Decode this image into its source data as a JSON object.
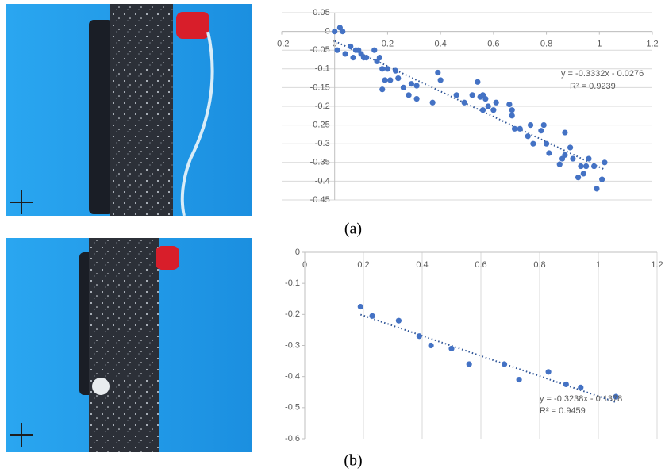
{
  "chart_data": [
    {
      "type": "scatter",
      "caption": "(a)",
      "x": [
        0.0,
        0.01,
        0.02,
        0.03,
        0.04,
        0.06,
        0.07,
        0.08,
        0.09,
        0.1,
        0.11,
        0.12,
        0.15,
        0.16,
        0.17,
        0.18,
        0.18,
        0.19,
        0.2,
        0.21,
        0.23,
        0.24,
        0.26,
        0.28,
        0.29,
        0.31,
        0.31,
        0.37,
        0.39,
        0.4,
        0.46,
        0.49,
        0.52,
        0.54,
        0.55,
        0.56,
        0.56,
        0.57,
        0.58,
        0.6,
        0.61,
        0.66,
        0.67,
        0.67,
        0.68,
        0.7,
        0.73,
        0.74,
        0.75,
        0.78,
        0.79,
        0.8,
        0.81,
        0.85,
        0.86,
        0.87,
        0.87,
        0.89,
        0.9,
        0.92,
        0.93,
        0.94,
        0.95,
        0.96,
        0.98,
        0.99,
        1.01,
        1.02
      ],
      "values": [
        0.0,
        -0.05,
        0.01,
        0.0,
        -0.06,
        -0.04,
        -0.07,
        -0.05,
        -0.05,
        -0.06,
        -0.07,
        -0.07,
        -0.05,
        -0.08,
        -0.07,
        -0.1,
        -0.155,
        -0.13,
        -0.1,
        -0.13,
        -0.105,
        -0.125,
        -0.15,
        -0.17,
        -0.14,
        -0.18,
        -0.145,
        -0.19,
        -0.11,
        -0.13,
        -0.17,
        -0.19,
        -0.17,
        -0.135,
        -0.175,
        -0.17,
        -0.21,
        -0.18,
        -0.2,
        -0.21,
        -0.19,
        -0.195,
        -0.21,
        -0.225,
        -0.26,
        -0.26,
        -0.28,
        -0.25,
        -0.3,
        -0.265,
        -0.25,
        -0.3,
        -0.325,
        -0.355,
        -0.34,
        -0.33,
        -0.27,
        -0.31,
        -0.34,
        -0.39,
        -0.36,
        -0.38,
        -0.36,
        -0.34,
        -0.36,
        -0.42,
        -0.395,
        -0.35
      ],
      "color": "#4472c4",
      "trendline": true,
      "grid": "y",
      "xlim": [
        -0.2,
        1.2
      ],
      "xticks": [
        -0.2,
        0,
        0.2,
        0.4,
        0.6,
        0.8,
        1,
        1.2
      ],
      "ylim": [
        -0.45,
        0.05
      ],
      "yticks": [
        0.05,
        0,
        -0.05,
        -0.1,
        -0.15,
        -0.2,
        -0.25,
        -0.3,
        -0.35,
        -0.4,
        -0.45
      ],
      "annotations": [
        "y = -0.3332x - 0.0276",
        "R² = 0.9239"
      ]
    },
    {
      "type": "scatter",
      "caption": "(b)",
      "x": [
        0.19,
        0.23,
        0.32,
        0.39,
        0.43,
        0.5,
        0.56,
        0.68,
        0.73,
        0.83,
        0.89,
        0.94,
        1.06
      ],
      "values": [
        -0.175,
        -0.205,
        -0.22,
        -0.27,
        -0.3,
        -0.31,
        -0.36,
        -0.36,
        -0.41,
        -0.385,
        -0.425,
        -0.435,
        -0.465
      ],
      "color": "#4472c4",
      "trendline": true,
      "grid": "x",
      "xlim": [
        0,
        1.2
      ],
      "xticks": [
        0,
        0.2,
        0.4,
        0.6,
        0.8,
        1,
        1.2
      ],
      "ylim": [
        -0.6,
        0
      ],
      "yticks": [
        0,
        -0.1,
        -0.2,
        -0.3,
        -0.4,
        -0.5,
        -0.6
      ],
      "annotations": [
        "y = -0.3238x - 0.1378",
        "R² = 0.9459"
      ]
    }
  ]
}
